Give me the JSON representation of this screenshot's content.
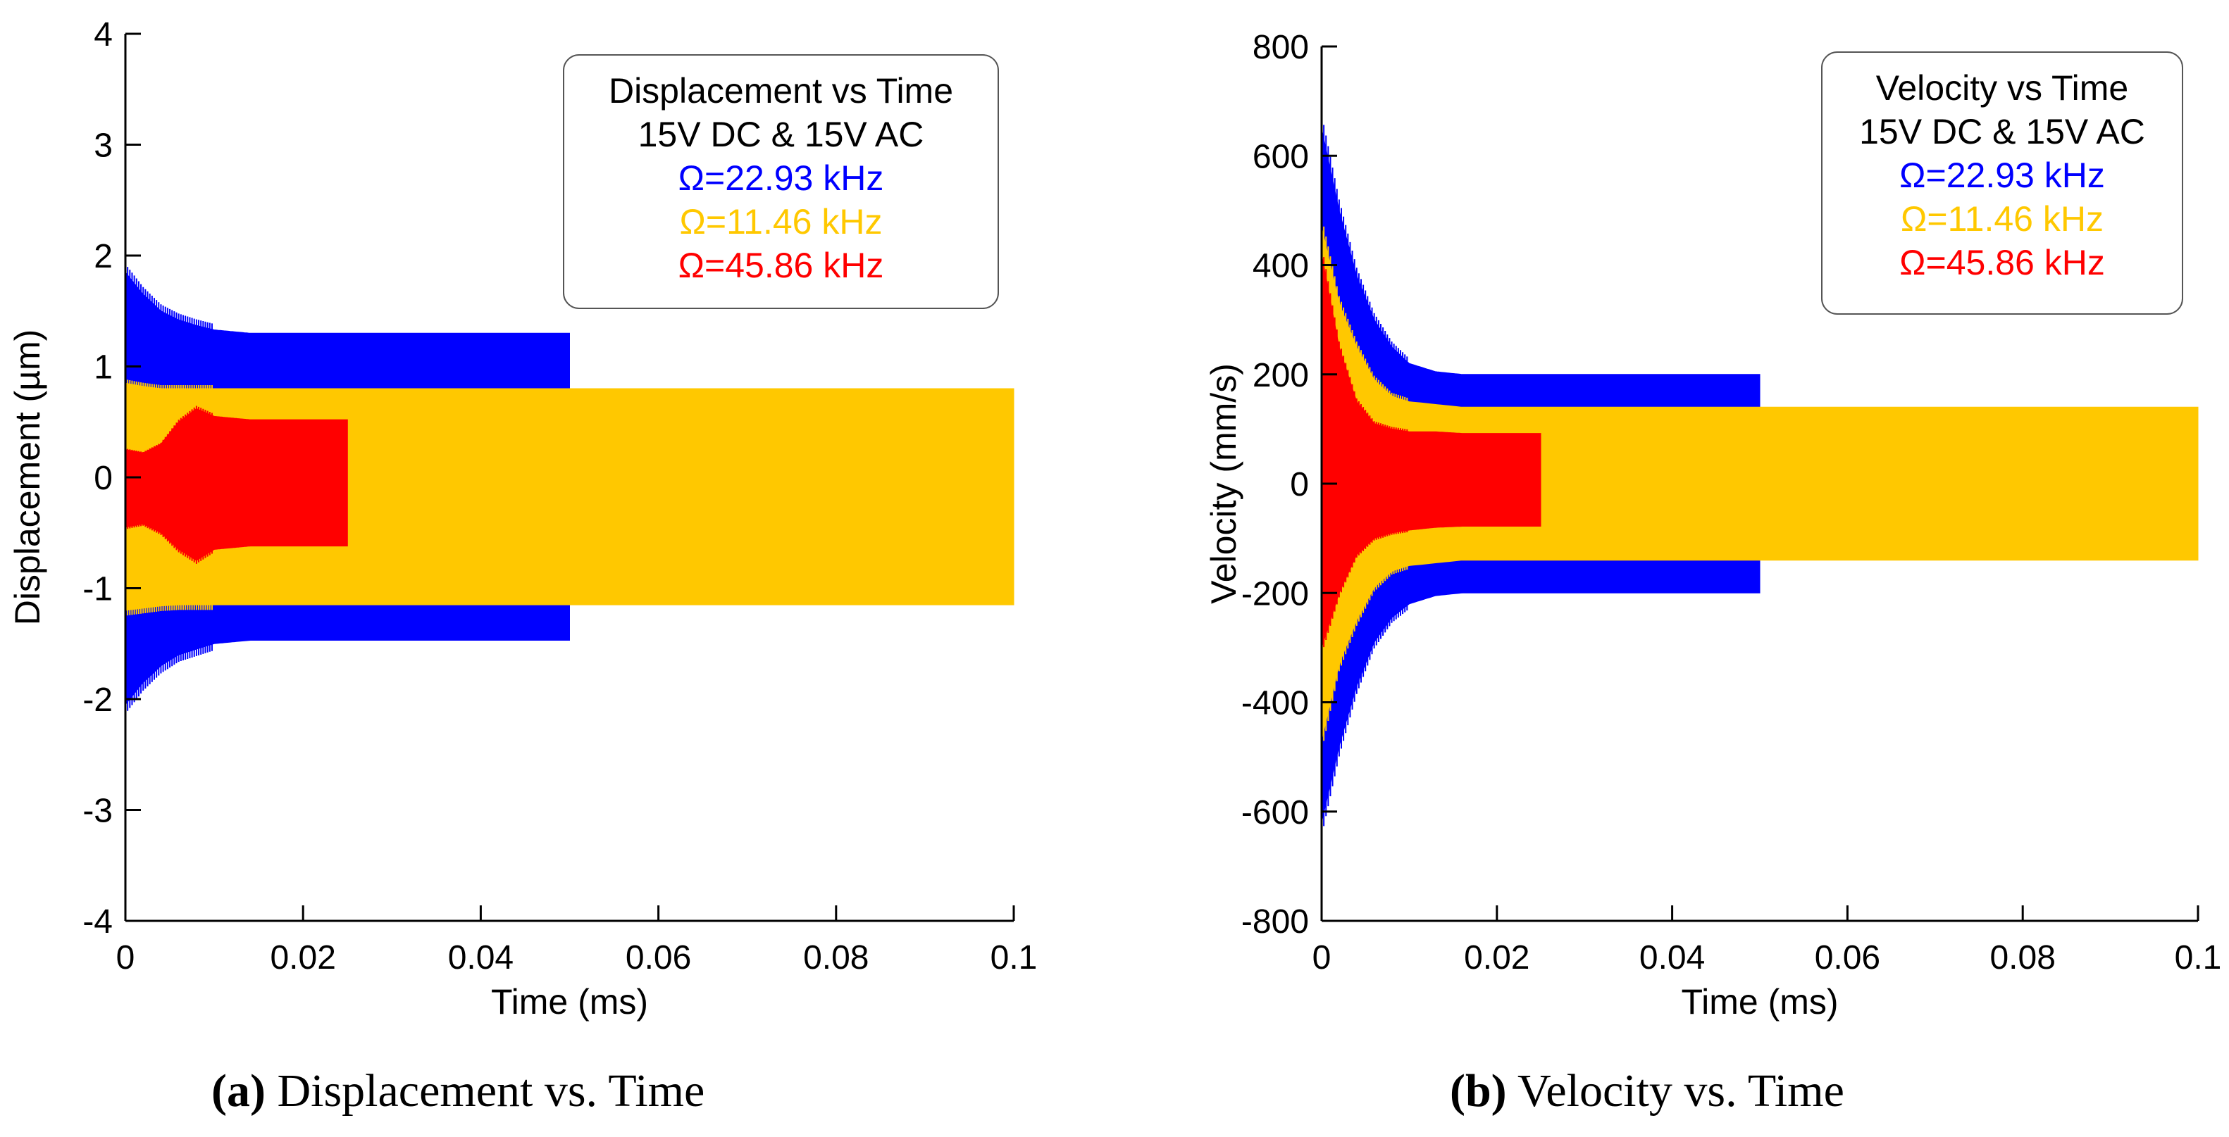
{
  "colors": {
    "blue": "#0000ff",
    "yellow": "#ffc800",
    "red": "#ff0000",
    "axis": "#000000"
  },
  "chart_data": [
    {
      "type": "line",
      "panel": "a",
      "xlabel": "Time (ms)",
      "ylabel": "Displacement (µm)",
      "xlim": [
        0,
        0.1
      ],
      "ylim": [
        -4,
        4
      ],
      "xticks": [
        0,
        0.02,
        0.04,
        0.06,
        0.08,
        0.1
      ],
      "xtick_labels": [
        "0",
        "0.02",
        "0.04",
        "0.06",
        "0.08",
        "0.1"
      ],
      "yticks": [
        4,
        3,
        2,
        1,
        0,
        -1,
        -2,
        -3,
        -4
      ],
      "ytick_labels": [
        "4",
        "3",
        "2",
        "1",
        "0",
        "-1",
        "-2",
        "-3",
        "-4"
      ],
      "legend": {
        "position": "top-right",
        "title_lines": [
          "Displacement vs Time",
          "15V DC & 15V AC"
        ],
        "entries": [
          "Ω=22.93 kHz",
          "Ω=11.46 kHz",
          "Ω=45.86 kHz"
        ]
      },
      "series": [
        {
          "name": "Ω=22.93 kHz",
          "color": "blue",
          "t_end": 0.05,
          "envelope_t": [
            0,
            0.002,
            0.004,
            0.006,
            0.008,
            0.01,
            0.014,
            0.05
          ],
          "upper": [
            1.85,
            1.65,
            1.5,
            1.42,
            1.37,
            1.33,
            1.3,
            1.3
          ],
          "lower": [
            -2.05,
            -1.85,
            -1.7,
            -1.6,
            -1.55,
            -1.5,
            -1.47,
            -1.47
          ]
        },
        {
          "name": "Ω=11.46 kHz",
          "color": "yellow",
          "t_end": 0.1,
          "envelope_t": [
            0,
            0.002,
            0.004,
            0.006,
            0.008,
            0.01,
            0.014,
            0.1
          ],
          "upper": [
            0.85,
            0.82,
            0.8,
            0.8,
            0.8,
            0.8,
            0.8,
            0.8
          ],
          "lower": [
            -1.2,
            -1.18,
            -1.16,
            -1.15,
            -1.15,
            -1.15,
            -1.15,
            -1.15
          ]
        },
        {
          "name": "Ω=45.86 kHz",
          "color": "red",
          "t_end": 0.025,
          "envelope_t": [
            0,
            0.002,
            0.004,
            0.006,
            0.008,
            0.01,
            0.014,
            0.025
          ],
          "upper": [
            0.25,
            0.22,
            0.3,
            0.5,
            0.62,
            0.55,
            0.52,
            0.52
          ],
          "lower": [
            -0.45,
            -0.42,
            -0.5,
            -0.65,
            -0.75,
            -0.65,
            -0.62,
            -0.62
          ]
        }
      ]
    },
    {
      "type": "line",
      "panel": "b",
      "xlabel": "Time (ms)",
      "ylabel": "Velocity (mm/s)",
      "xlim": [
        0,
        0.1
      ],
      "ylim": [
        -800,
        800
      ],
      "xticks": [
        0,
        0.02,
        0.04,
        0.06,
        0.08,
        0.1
      ],
      "xtick_labels": [
        "0",
        "0.02",
        "0.04",
        "0.06",
        "0.08",
        "0.1"
      ],
      "yticks": [
        800,
        600,
        400,
        200,
        0,
        -200,
        -400,
        -600,
        -800
      ],
      "ytick_labels": [
        "800",
        "600",
        "400",
        "200",
        "0",
        "-200",
        "-400",
        "-600",
        "-800"
      ],
      "legend": {
        "position": "top-right",
        "title_lines": [
          "Velocity vs Time",
          "15V DC & 15V AC"
        ],
        "entries": [
          "Ω=22.93 kHz",
          "Ω=11.46 kHz",
          "Ω=45.86 kHz"
        ]
      },
      "series": [
        {
          "name": "Ω=22.93 kHz",
          "color": "blue",
          "t_end": 0.05,
          "envelope_t": [
            0,
            0.002,
            0.004,
            0.006,
            0.008,
            0.01,
            0.013,
            0.016,
            0.05
          ],
          "upper": [
            650,
            500,
            380,
            300,
            250,
            220,
            205,
            200,
            200
          ],
          "lower": [
            -620,
            -480,
            -370,
            -290,
            -245,
            -220,
            -205,
            -200,
            -200
          ]
        },
        {
          "name": "Ω=11.46 kHz",
          "color": "yellow",
          "t_end": 0.1,
          "envelope_t": [
            0,
            0.002,
            0.004,
            0.006,
            0.008,
            0.01,
            0.013,
            0.016,
            0.1
          ],
          "upper": [
            470,
            330,
            250,
            190,
            160,
            150,
            145,
            140,
            140
          ],
          "lower": [
            -470,
            -330,
            -250,
            -190,
            -160,
            -150,
            -145,
            -140,
            -140
          ]
        },
        {
          "name": "Ω=45.86 kHz",
          "color": "red",
          "t_end": 0.025,
          "envelope_t": [
            0,
            0.002,
            0.004,
            0.006,
            0.008,
            0.01,
            0.013,
            0.016,
            0.025
          ],
          "upper": [
            420,
            250,
            150,
            110,
            100,
            95,
            95,
            92,
            92
          ],
          "lower": [
            -300,
            -200,
            -130,
            -100,
            -90,
            -85,
            -80,
            -78,
            -78
          ]
        }
      ]
    }
  ],
  "captions": {
    "a": {
      "label": "(a)",
      "text": " Displacement vs. Time"
    },
    "b": {
      "label": "(b)",
      "text": " Velocity vs. Time"
    }
  }
}
